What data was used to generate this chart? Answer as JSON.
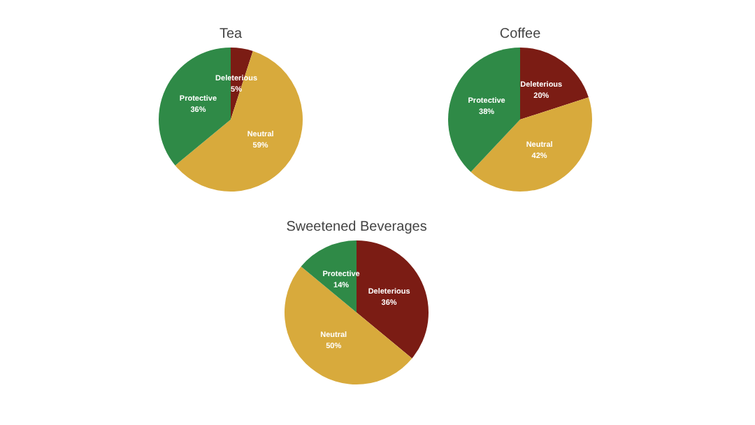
{
  "chart_data": [
    {
      "type": "pie",
      "title": "Tea",
      "categories": [
        "Deleterious",
        "Neutral",
        "Protective"
      ],
      "values": [
        5,
        59,
        36
      ],
      "colors": [
        "#7b1c14",
        "#d8aa3c",
        "#2f8a47"
      ],
      "value_labels": [
        "5%",
        "59%",
        "36%"
      ],
      "legend": false
    },
    {
      "type": "pie",
      "title": "Coffee",
      "categories": [
        "Deleterious",
        "Neutral",
        "Protective"
      ],
      "values": [
        20,
        42,
        38
      ],
      "colors": [
        "#7b1c14",
        "#d8aa3c",
        "#2f8a47"
      ],
      "value_labels": [
        "20%",
        "42%",
        "38%"
      ],
      "legend": false
    },
    {
      "type": "pie",
      "title": "Sweetened Beverages",
      "categories": [
        "Deleterious",
        "Neutral",
        "Protective"
      ],
      "values": [
        36,
        50,
        14
      ],
      "colors": [
        "#7b1c14",
        "#d8aa3c",
        "#2f8a47"
      ],
      "value_labels": [
        "36%",
        "50%",
        "14%"
      ],
      "legend": false
    }
  ]
}
